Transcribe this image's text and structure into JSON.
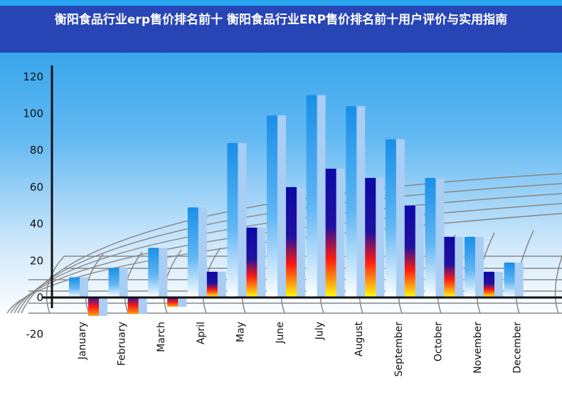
{
  "title": "衡阳食品行业erp售价排名前十 衡阳食品行业ERP售价排名前十用户评价与实用指南",
  "chart_data": {
    "type": "bar",
    "title": "衡阳食品行业erp售价排名前十 衡阳食品行业ERP售价排名前十用户评价与实用指南",
    "categories": [
      "January",
      "February",
      "March",
      "April",
      "May",
      "June",
      "July",
      "August",
      "September",
      "October",
      "November",
      "December"
    ],
    "series": [
      {
        "values": [
          11,
          16,
          27,
          49,
          84,
          99,
          110,
          104,
          86,
          65,
          33,
          19
        ],
        "color": "#1e90e8"
      },
      {
        "values": [
          -10,
          -9,
          -5,
          14,
          38,
          60,
          70,
          65,
          50,
          33,
          14,
          null
        ],
        "color": "#1a1aa8"
      }
    ],
    "yticks": [
      -20,
      0,
      20,
      40,
      60,
      80,
      100,
      120
    ],
    "ylim": [
      -20,
      125
    ],
    "grid": false
  }
}
